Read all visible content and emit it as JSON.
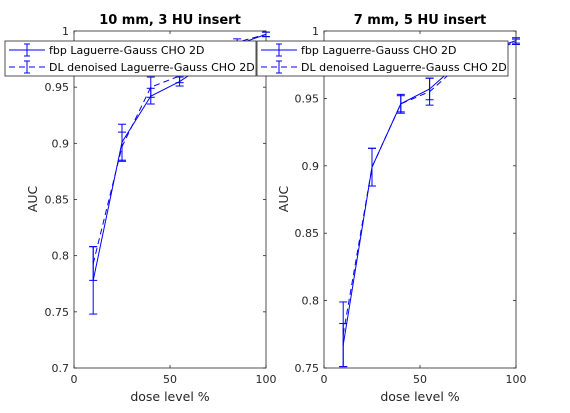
{
  "chart_data": [
    {
      "type": "line",
      "title": "10 mm, 3 HU insert",
      "xlabel": "dose level %",
      "ylabel": "AUC",
      "xlim": [
        0,
        100
      ],
      "ylim": [
        0.7,
        1.0
      ],
      "xticks": [
        "0",
        "50",
        "100"
      ],
      "yticks": [
        "0.7",
        "0.75",
        "0.8",
        "0.85",
        "0.9",
        "0.95",
        "1"
      ],
      "grid": false,
      "legend_location": "top",
      "series": [
        {
          "name": "fbp Laguerre-Gauss CHO 2D",
          "line_style": "solid",
          "x": [
            10,
            25,
            40,
            55,
            70,
            85,
            100
          ],
          "y": [
            0.778,
            0.901,
            0.942,
            0.955,
            0.972,
            0.988,
            0.997
          ],
          "err": [
            0.03,
            0.016,
            0.007,
            0.004,
            0.003,
            0.002,
            0.002
          ]
        },
        {
          "name": "DL denoised Laguerre-Gauss CHO 2D",
          "line_style": "dashed",
          "x": [
            10,
            25,
            40,
            55,
            70,
            85,
            100
          ],
          "y": [
            0.793,
            0.897,
            0.95,
            0.96,
            0.978,
            0.99,
            0.997
          ],
          "err": [
            0.015,
            0.013,
            0.009,
            0.006,
            0.004,
            0.003,
            0.002
          ]
        }
      ]
    },
    {
      "type": "line",
      "title": "7 mm, 5 HU insert",
      "xlabel": "dose level %",
      "ylabel": "AUC",
      "xlim": [
        0,
        100
      ],
      "ylim": [
        0.75,
        1.0
      ],
      "xticks": [
        "0",
        "50",
        "100"
      ],
      "yticks": [
        "0.75",
        "0.8",
        "0.85",
        "0.9",
        "0.95",
        "1"
      ],
      "grid": false,
      "legend_location": "top",
      "series": [
        {
          "name": "fbp Laguerre-Gauss CHO 2D",
          "line_style": "solid",
          "x": [
            10,
            25,
            40,
            55,
            70,
            85,
            100
          ],
          "y": [
            0.767,
            0.899,
            0.946,
            0.957,
            0.976,
            0.985,
            0.993
          ],
          "err": [
            0.016,
            0.014,
            0.006,
            0.008,
            0.004,
            0.003,
            0.002
          ]
        },
        {
          "name": "DL denoised Laguerre-Gauss CHO 2D",
          "line_style": "dashed",
          "x": [
            10,
            25,
            40,
            55,
            70,
            85,
            100
          ],
          "y": [
            0.775,
            0.899,
            0.946,
            0.955,
            0.974,
            0.984,
            0.992
          ],
          "err": [
            0.024,
            0.014,
            0.007,
            0.01,
            0.005,
            0.003,
            0.002
          ]
        }
      ]
    }
  ],
  "colors": {
    "line": "#0000ff",
    "axis": "#262626"
  }
}
